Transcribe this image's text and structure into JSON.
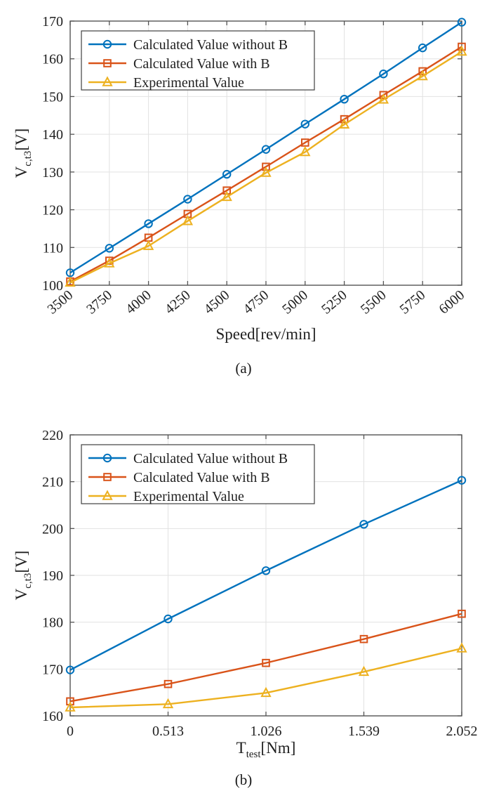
{
  "colors": {
    "background": "#ffffff",
    "axis": "#545454",
    "grid": "#e2e2e2",
    "text": "#212121",
    "legend_border": "#3f3f3f"
  },
  "chart_data": [
    {
      "type": "line",
      "caption": "(a)",
      "title": "",
      "xlabel": {
        "main": "Speed[rev/min]",
        "sub": "",
        "unit": ""
      },
      "ylabel": {
        "main": "V",
        "sub": "c,t3",
        "unit": "[V]"
      },
      "x": [
        3500,
        3750,
        4000,
        4250,
        4500,
        4750,
        5000,
        5250,
        5500,
        5750,
        6000
      ],
      "xtick_labels": [
        "3500",
        "3750",
        "4000",
        "4250",
        "4500",
        "4750",
        "5000",
        "5250",
        "5500",
        "5750",
        "6000"
      ],
      "xtick_rotated": true,
      "ylim": [
        100,
        170
      ],
      "yticks": [
        100,
        110,
        120,
        130,
        140,
        150,
        160,
        170
      ],
      "ytick_labels": [
        "100",
        "110",
        "120",
        "130",
        "140",
        "150",
        "160",
        "170"
      ],
      "grid": true,
      "legend_position": "top-left",
      "series": [
        {
          "name": "Calculated Value without B",
          "marker": "circle",
          "color": "#0072BD",
          "values": [
            103.3,
            109.8,
            116.3,
            122.8,
            129.4,
            136.0,
            142.7,
            149.3,
            156.0,
            162.9,
            169.7
          ]
        },
        {
          "name": "Calculated Value with B",
          "marker": "square",
          "color": "#D95319",
          "values": [
            101.0,
            106.5,
            112.6,
            118.9,
            125.1,
            131.4,
            137.8,
            144.0,
            150.4,
            156.7,
            163.2
          ]
        },
        {
          "name": "Experimental Value",
          "marker": "triangle",
          "color": "#EDB120",
          "values": [
            100.7,
            105.8,
            110.4,
            117.0,
            123.4,
            129.8,
            135.3,
            142.6,
            149.2,
            155.4,
            161.9
          ]
        }
      ]
    },
    {
      "type": "line",
      "caption": "(b)",
      "title": "",
      "xlabel": {
        "main": "T",
        "sub": "test",
        "unit": "[Nm]"
      },
      "ylabel": {
        "main": "V",
        "sub": "c,t3",
        "unit": "[V]"
      },
      "x": [
        0,
        0.513,
        1.026,
        1.539,
        2.052
      ],
      "xtick_labels": [
        "0",
        "0.513",
        "1.026",
        "1.539",
        "2.052"
      ],
      "xtick_rotated": false,
      "ylim": [
        160,
        220
      ],
      "yticks": [
        160,
        170,
        180,
        190,
        200,
        210,
        220
      ],
      "ytick_labels": [
        "160",
        "170",
        "180",
        "190",
        "200",
        "210",
        "220"
      ],
      "grid": true,
      "legend_position": "top-left",
      "series": [
        {
          "name": "Calculated Value without B",
          "marker": "circle",
          "color": "#0072BD",
          "values": [
            169.8,
            180.7,
            191.0,
            200.9,
            210.3
          ]
        },
        {
          "name": "Calculated Value with B",
          "marker": "square",
          "color": "#D95319",
          "values": [
            163.1,
            166.8,
            171.3,
            176.4,
            181.8
          ]
        },
        {
          "name": "Experimental Value",
          "marker": "triangle",
          "color": "#EDB120",
          "values": [
            161.8,
            162.5,
            164.9,
            169.4,
            174.4
          ]
        }
      ]
    }
  ]
}
